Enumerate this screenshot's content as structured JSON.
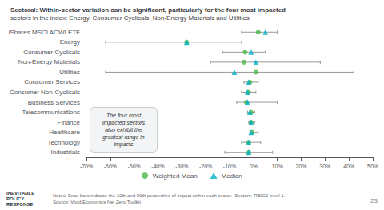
{
  "chart_data": {
    "type": "dot",
    "title": "Sectoral: Within-sector variation can be significant, particularly for the four most impacted",
    "subtitle": "sectors in the index: Energy, Consumer Cyclicals, Non-Energy Materials and Utilities",
    "categories": [
      "iShares MSCI ACWI ETF",
      "Energy",
      "Consumer Cyclicals",
      "Non-Energy Materials",
      "Utilities",
      "Consumer Services",
      "Consumer Non-Cyclicals",
      "Business Services",
      "Telecommunications",
      "Finance",
      "Healthcare",
      "Technology",
      "Industrials"
    ],
    "series": [
      {
        "name": "Weighted Mean",
        "color": "#4db848",
        "marker": "circle",
        "values": [
          2.0,
          -28.0,
          -3.5,
          -4.0,
          1.0,
          -1.5,
          -2.0,
          -3.0,
          -1.0,
          -1.0,
          -0.5,
          -2.0,
          -2.0
        ]
      },
      {
        "name": "Median",
        "color": "#00b0c8",
        "marker": "triangle",
        "values": [
          5.0,
          -28.0,
          -1.0,
          1.0,
          -8.0,
          -2.0,
          -2.5,
          -2.5,
          -1.5,
          -1.0,
          -1.0,
          -2.0,
          -2.0
        ]
      }
    ],
    "error_low": [
      -5.0,
      -62.0,
      -13.0,
      -18.0,
      -62.0,
      -4.0,
      -5.0,
      -7.0,
      -2.5,
      -2.0,
      -1.5,
      -5.0,
      -12.0
    ],
    "error_high": [
      10.0,
      -5.0,
      5.0,
      28.0,
      42.0,
      2.0,
      1.0,
      10.0,
      0.5,
      0.5,
      2.0,
      3.0,
      8.0
    ],
    "xlim": [
      -70,
      50
    ],
    "xticks": [
      {
        "value": -70,
        "label": "-70%"
      },
      {
        "value": -60,
        "label": "-60%"
      },
      {
        "value": -50,
        "label": "-50%"
      },
      {
        "value": -40,
        "label": "-40%"
      },
      {
        "value": -30,
        "label": "-30%"
      },
      {
        "value": -20,
        "label": "-20%"
      },
      {
        "value": -10,
        "label": "-10%"
      },
      {
        "value": 0,
        "label": "0%"
      },
      {
        "value": 10,
        "label": "10%"
      },
      {
        "value": 20,
        "label": "20%"
      },
      {
        "value": 30,
        "label": "30%"
      },
      {
        "value": 40,
        "label": "40%"
      },
      {
        "value": 50,
        "label": "50%"
      }
    ],
    "grid": false,
    "legend": "bottom",
    "annotation": [
      "The four most",
      "impacted sectors",
      "also exhibit the",
      "greatest range in",
      "impacts"
    ],
    "logo": [
      "INEVITABLE",
      "POLICY",
      "RESPONSE"
    ],
    "notes": [
      "Notes: Error bars indicate the 10th and 90th percentiles of impact within each sector.  Sectors: RBICS level 1.",
      "Source: Vivid Economics Net Zero Toolkit"
    ],
    "page_number": "23"
  }
}
